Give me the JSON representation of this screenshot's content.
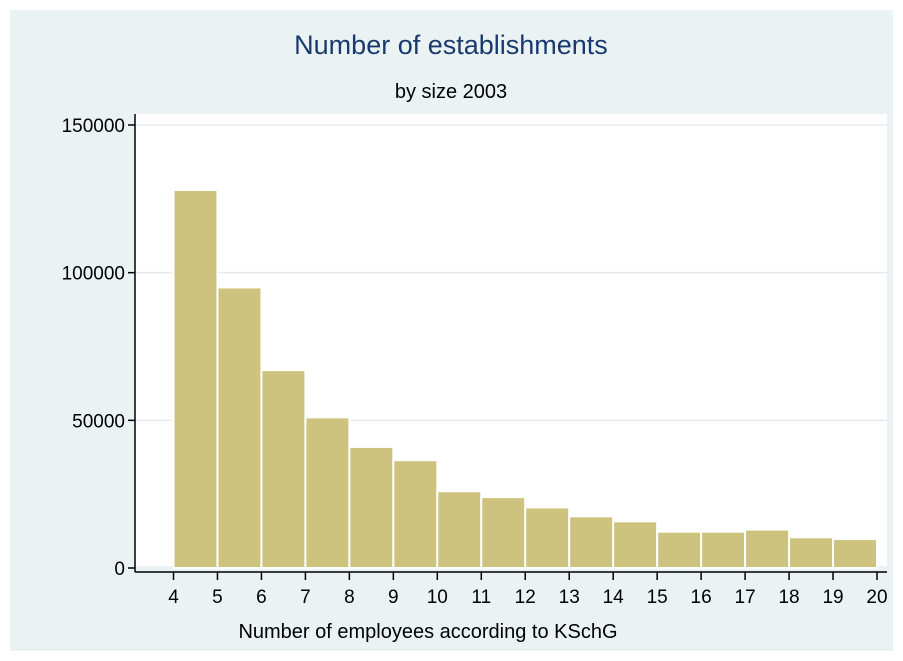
{
  "chart_data": {
    "type": "bar",
    "title": "Number of establishments",
    "subtitle": "by size 2003",
    "xlabel": "Number of employees according to KSchG",
    "ylabel": "",
    "x_ticks": [
      "4",
      "5",
      "6",
      "7",
      "8",
      "9",
      "10",
      "11",
      "12",
      "13",
      "14",
      "15",
      "16",
      "17",
      "18",
      "19",
      "20"
    ],
    "y_ticks": [
      "0",
      "50000",
      "100000",
      "150000"
    ],
    "ylim": [
      0,
      150000
    ],
    "xlim": [
      4,
      20
    ],
    "bins": [
      {
        "from": 4,
        "to": 5,
        "value": 128000
      },
      {
        "from": 5,
        "to": 6,
        "value": 95000
      },
      {
        "from": 6,
        "to": 7,
        "value": 67000
      },
      {
        "from": 7,
        "to": 8,
        "value": 51000
      },
      {
        "from": 8,
        "to": 9,
        "value": 41000
      },
      {
        "from": 9,
        "to": 10,
        "value": 36500
      },
      {
        "from": 10,
        "to": 11,
        "value": 26000
      },
      {
        "from": 11,
        "to": 12,
        "value": 24000
      },
      {
        "from": 12,
        "to": 13,
        "value": 20500
      },
      {
        "from": 13,
        "to": 14,
        "value": 17500
      },
      {
        "from": 14,
        "to": 15,
        "value": 15800
      },
      {
        "from": 15,
        "to": 16,
        "value": 12300
      },
      {
        "from": 16,
        "to": 17,
        "value": 12300
      },
      {
        "from": 17,
        "to": 18,
        "value": 13000
      },
      {
        "from": 18,
        "to": 19,
        "value": 10400
      },
      {
        "from": 19,
        "to": 20,
        "value": 9800
      }
    ],
    "grid": true,
    "colors": {
      "background": "#eaf2f3",
      "plot_area": "#ffffff",
      "bar_fill": "#cdc37e",
      "bar_edge": "#ffffff",
      "gridline": "#e4ecf0",
      "title": "#1a3a6e"
    }
  }
}
